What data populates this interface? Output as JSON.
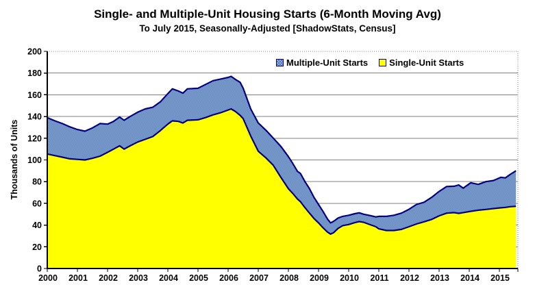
{
  "title": "Single- and Multiple-Unit Housing Starts (6-Month Moving Avg)",
  "subtitle": "To July 2015, Seasonally-Adjusted [ShadowStats, Census]",
  "y_axis": {
    "label": "Thousands of Units",
    "min": 0,
    "max": 200,
    "tick_step": 20,
    "ticks": [
      0,
      20,
      40,
      60,
      80,
      100,
      120,
      140,
      160,
      180,
      200
    ]
  },
  "x_axis": {
    "ticks": [
      2000,
      2001,
      2002,
      2003,
      2004,
      2005,
      2006,
      2007,
      2008,
      2009,
      2010,
      2011,
      2012,
      2013,
      2014,
      2015
    ],
    "end": 2015.55
  },
  "legend": [
    {
      "label": "Multiple-Unit Starts",
      "color": "#6E93C7"
    },
    {
      "label": "Single-Unit Starts",
      "color": "#FFFF00"
    }
  ],
  "style": {
    "single_fill": "#FFFF00",
    "multiple_fill_light": "#8FB0DC",
    "multiple_fill_dark": "#5578B0",
    "outline_color": "#000080",
    "gridline_color": "#808080",
    "axis_color": "#000000",
    "text_color": "#000000",
    "background": "#FFFFFF"
  },
  "chart_data": {
    "type": "area",
    "stacked": true,
    "title": "Single- and Multiple-Unit Housing Starts (6-Month Moving Avg)",
    "subtitle": "To July 2015, Seasonally-Adjusted [ShadowStats, Census]",
    "xlabel": "",
    "ylabel": "Thousands of Units",
    "ylim": [
      0,
      200
    ],
    "xlim": [
      2000,
      2015.55
    ],
    "grid": true,
    "legend_position": "top",
    "units": "thousands of units per month",
    "x": [
      2000.0,
      2000.25,
      2000.5,
      2000.75,
      2001.0,
      2001.25,
      2001.5,
      2001.75,
      2002.0,
      2002.2,
      2002.4,
      2002.55,
      2002.75,
      2003.0,
      2003.25,
      2003.5,
      2003.75,
      2004.0,
      2004.15,
      2004.35,
      2004.5,
      2004.65,
      2005.0,
      2005.25,
      2005.5,
      2005.75,
      2006.0,
      2006.1,
      2006.25,
      2006.4,
      2006.5,
      2006.75,
      2007.0,
      2007.25,
      2007.5,
      2007.75,
      2008.0,
      2008.15,
      2008.3,
      2008.4,
      2008.55,
      2008.7,
      2008.85,
      2009.0,
      2009.15,
      2009.3,
      2009.4,
      2009.5,
      2009.65,
      2009.8,
      2010.0,
      2010.2,
      2010.35,
      2010.5,
      2010.75,
      2010.9,
      2011.0,
      2011.25,
      2011.5,
      2011.75,
      2012.0,
      2012.25,
      2012.5,
      2012.75,
      2013.0,
      2013.25,
      2013.5,
      2013.65,
      2013.8,
      2014.05,
      2014.3,
      2014.55,
      2014.8,
      2015.05,
      2015.2,
      2015.35,
      2015.55
    ],
    "series": [
      {
        "name": "Single-Unit Starts",
        "color": "#FFFF00",
        "values": [
          105.5,
          104,
          102.5,
          101,
          100.5,
          100,
          101.5,
          103.5,
          107,
          110,
          113,
          110,
          113,
          116.5,
          119,
          121.5,
          127,
          133,
          136,
          135.5,
          134,
          136.5,
          137,
          139,
          141.5,
          143.5,
          146,
          147,
          144.5,
          141,
          138,
          122,
          108,
          102,
          95,
          84,
          73.5,
          69,
          64,
          61.5,
          56,
          51,
          46,
          42,
          37.5,
          33.5,
          31.7,
          33,
          37,
          39.5,
          40.5,
          42.2,
          43.2,
          42.5,
          40,
          38.5,
          36.5,
          35,
          35,
          36,
          38.5,
          41,
          43,
          45.2,
          48.5,
          51,
          51.5,
          50.8,
          51.5,
          52.7,
          53.7,
          54.4,
          55.2,
          55.9,
          56.3,
          56.9,
          57.3
        ]
      },
      {
        "name": "Multiple-Unit Starts",
        "color": "#6E93C7",
        "values": [
          33.5,
          32,
          31,
          29.5,
          27.5,
          26.5,
          28,
          30,
          26,
          25.5,
          26.5,
          26.5,
          27,
          27.5,
          28,
          27,
          26.5,
          28,
          29.5,
          28,
          27.5,
          29,
          29,
          30.5,
          31.5,
          31,
          30,
          30,
          29.5,
          30.5,
          28,
          25,
          26,
          25.5,
          25,
          28.5,
          29.5,
          27.5,
          25.5,
          26,
          24,
          22.5,
          19.5,
          17,
          15,
          12,
          10.3,
          10.5,
          9.5,
          8.5,
          8.5,
          8.3,
          8.1,
          7.5,
          8.5,
          9,
          11.5,
          13,
          14,
          15,
          16,
          18,
          18,
          20.3,
          22.5,
          24.5,
          24.3,
          26.2,
          22.5,
          26.3,
          23.8,
          25.6,
          25.8,
          28.1,
          27.2,
          29.6,
          32.7
        ]
      }
    ]
  }
}
